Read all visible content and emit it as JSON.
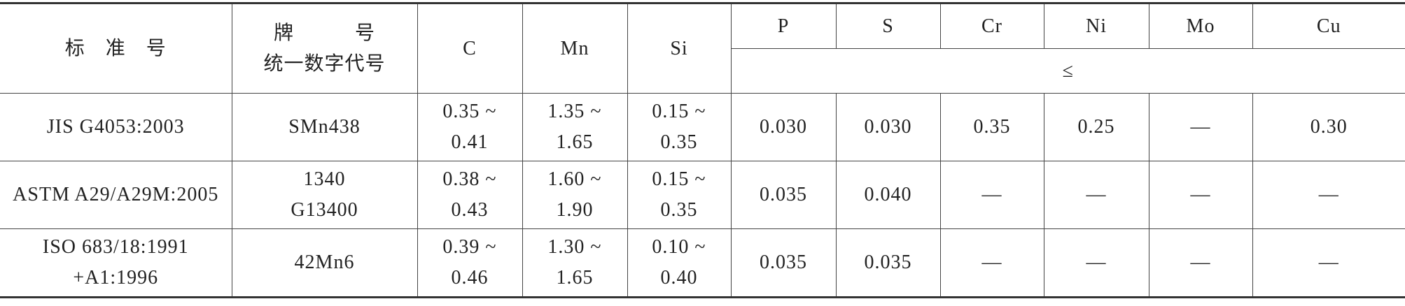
{
  "table": {
    "header": {
      "standard": "标　准　号",
      "grade": [
        "牌　　　号",
        "统一数字代号"
      ],
      "elements": [
        "C",
        "Mn",
        "Si",
        "P",
        "S",
        "Cr",
        "Ni",
        "Mo",
        "Cu"
      ],
      "max_note": "≤"
    },
    "rows": [
      {
        "standard": [
          "JIS G4053:2003"
        ],
        "grade": [
          "SMn438"
        ],
        "values": [
          [
            "0.35 ~",
            "0.41"
          ],
          [
            "1.35 ~",
            "1.65"
          ],
          [
            "0.15 ~",
            "0.35"
          ],
          [
            "0.030"
          ],
          [
            "0.030"
          ],
          [
            "0.35"
          ],
          [
            "0.25"
          ],
          [
            "—"
          ],
          [
            "0.30"
          ]
        ]
      },
      {
        "standard": [
          "ASTM A29/A29M:2005"
        ],
        "grade": [
          "1340",
          "G13400"
        ],
        "values": [
          [
            "0.38 ~",
            "0.43"
          ],
          [
            "1.60 ~",
            "1.90"
          ],
          [
            "0.15 ~",
            "0.35"
          ],
          [
            "0.035"
          ],
          [
            "0.040"
          ],
          [
            "—"
          ],
          [
            "—"
          ],
          [
            "—"
          ],
          [
            "—"
          ]
        ]
      },
      {
        "standard": [
          "ISO 683/18:1991",
          "+A1:1996"
        ],
        "grade": [
          "42Mn6"
        ],
        "values": [
          [
            "0.39 ~",
            "0.46"
          ],
          [
            "1.30 ~",
            "1.65"
          ],
          [
            "0.10 ~",
            "0.40"
          ],
          [
            "0.035"
          ],
          [
            "0.035"
          ],
          [
            "—"
          ],
          [
            "—"
          ],
          [
            "—"
          ],
          [
            "—"
          ]
        ]
      }
    ]
  }
}
